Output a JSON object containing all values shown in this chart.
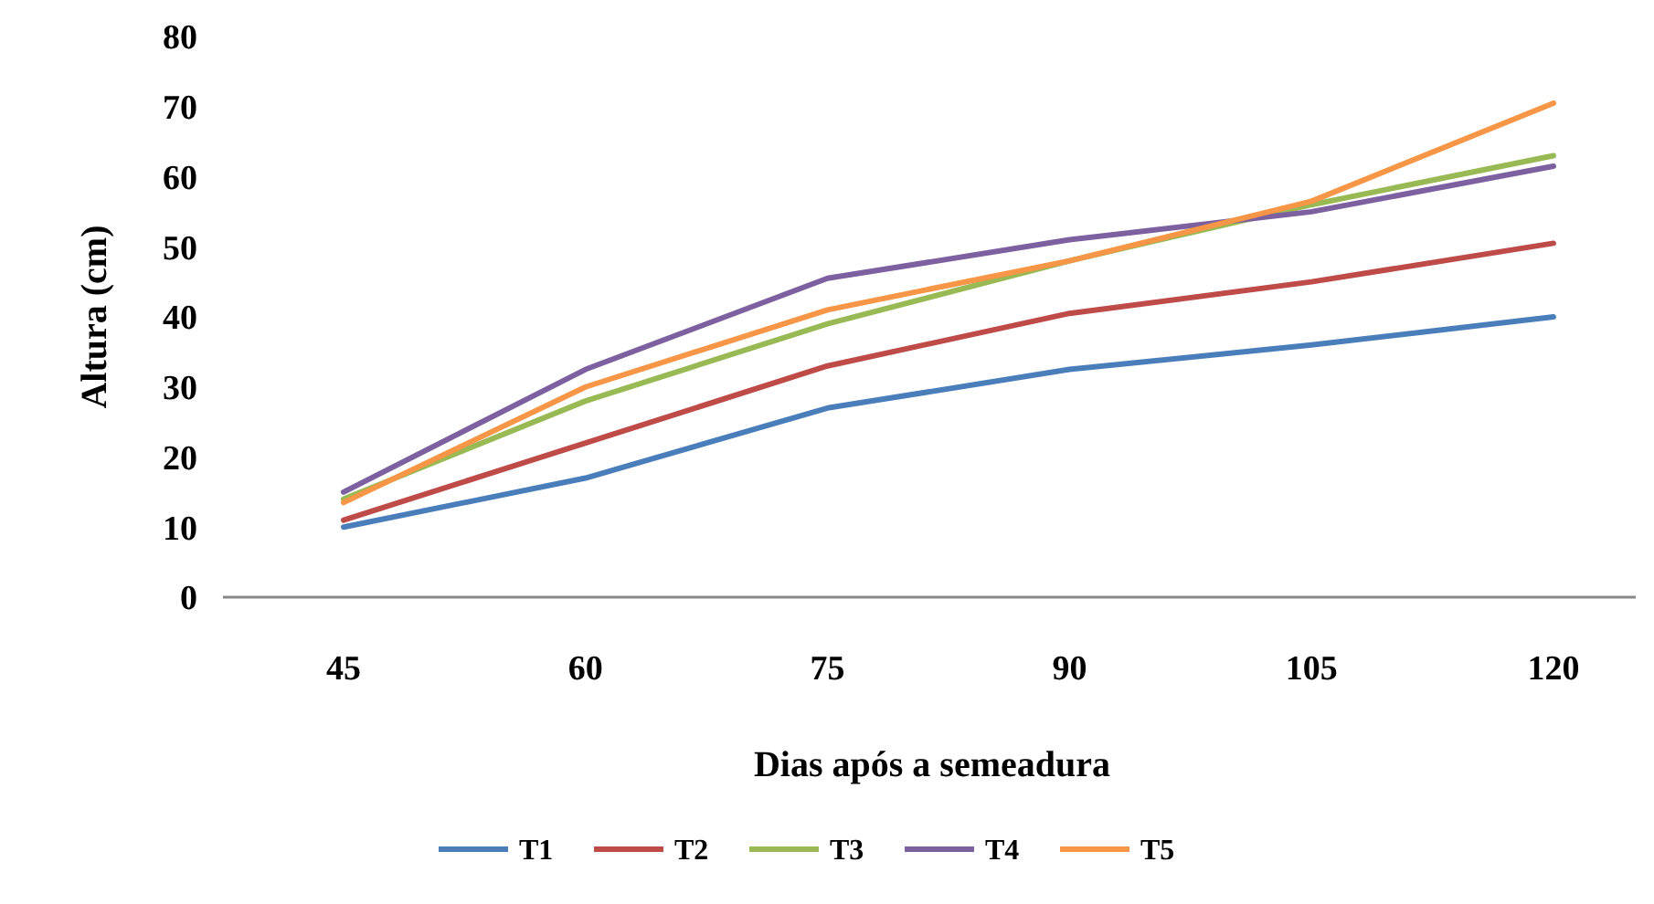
{
  "chart_data": {
    "type": "line",
    "xlabel": "Dias após a semeadura",
    "ylabel": "Altura (cm)",
    "categories": [
      "45",
      "60",
      "75",
      "90",
      "105",
      "120"
    ],
    "ylim": [
      0,
      80
    ],
    "yticks": [
      0,
      10,
      20,
      30,
      40,
      50,
      60,
      70,
      80
    ],
    "grid": false,
    "legend": "bottom",
    "marker": "none",
    "series": [
      {
        "name": "T1",
        "color": "#4a7ebb",
        "values": [
          10,
          17,
          27,
          32.5,
          36,
          40
        ]
      },
      {
        "name": "T2",
        "color": "#be4b48",
        "values": [
          11,
          22,
          33,
          40.5,
          45,
          50.5
        ]
      },
      {
        "name": "T3",
        "color": "#98b954",
        "values": [
          14,
          28,
          39,
          48,
          56,
          63
        ]
      },
      {
        "name": "T4",
        "color": "#7d60a0",
        "values": [
          15,
          32.5,
          45.5,
          51,
          55,
          61.5
        ]
      },
      {
        "name": "T5",
        "color": "#f79646",
        "values": [
          13.5,
          30,
          41,
          48,
          56.5,
          70.5
        ]
      }
    ]
  }
}
